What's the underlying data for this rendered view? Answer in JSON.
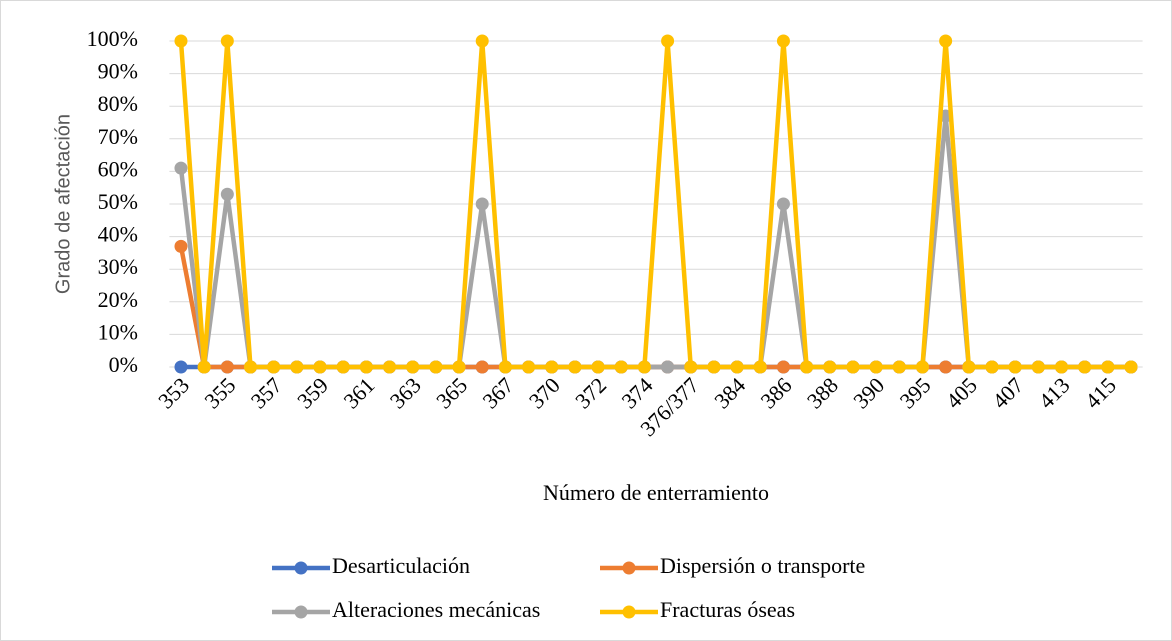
{
  "chart_data": {
    "type": "line",
    "x_label": "Número de enterramiento",
    "y_label": "Grado de afectación",
    "categories": [
      "353",
      null,
      "355",
      null,
      "357",
      null,
      "359",
      null,
      "361",
      null,
      "363",
      null,
      "365",
      null,
      "367",
      null,
      "370",
      null,
      "372",
      null,
      "374",
      null,
      "376/377",
      null,
      "384",
      null,
      "386",
      null,
      "388",
      null,
      "390",
      null,
      "395",
      null,
      "405",
      null,
      "407",
      null,
      "413",
      null,
      "415",
      null
    ],
    "series": [
      {
        "name": "Desarticulación",
        "color": "#4472c4",
        "values": [
          0,
          0,
          0,
          0,
          0,
          0,
          0,
          0,
          0,
          0,
          0,
          0,
          0,
          0,
          0,
          0,
          0,
          0,
          0,
          0,
          0,
          0,
          0,
          0,
          0,
          0,
          0,
          0,
          0,
          0,
          0,
          0,
          0,
          0,
          0,
          0,
          0,
          0,
          0,
          0,
          0,
          0
        ]
      },
      {
        "name": "Dispersión o transporte",
        "color": "#ed7d31",
        "values": [
          37,
          0,
          0,
          0,
          0,
          0,
          0,
          0,
          0,
          0,
          0,
          0,
          0,
          0,
          0,
          0,
          0,
          0,
          0,
          0,
          0,
          0,
          0,
          0,
          0,
          0,
          0,
          0,
          0,
          0,
          0,
          0,
          0,
          0,
          0,
          0,
          0,
          0,
          0,
          0,
          0,
          0
        ]
      },
      {
        "name": "Alteraciones mecánicas",
        "color": "#a5a5a5",
        "values": [
          61,
          0,
          53,
          0,
          0,
          0,
          0,
          0,
          0,
          0,
          0,
          0,
          0,
          50,
          0,
          0,
          0,
          0,
          0,
          0,
          0,
          0,
          0,
          0,
          0,
          0,
          50,
          0,
          0,
          0,
          0,
          0,
          0,
          77,
          0,
          0,
          0,
          0,
          0,
          0,
          0,
          0
        ]
      },
      {
        "name": "Fracturas óseas",
        "color": "#ffc000",
        "values": [
          100,
          0,
          100,
          0,
          0,
          0,
          0,
          0,
          0,
          0,
          0,
          0,
          0,
          100,
          0,
          0,
          0,
          0,
          0,
          0,
          0,
          100,
          0,
          0,
          0,
          0,
          100,
          0,
          0,
          0,
          0,
          0,
          0,
          100,
          0,
          0,
          0,
          0,
          0,
          0,
          0,
          0
        ]
      }
    ],
    "ylim": [
      0,
      100
    ],
    "yticks": [
      {
        "value": 0,
        "label": "0%"
      },
      {
        "value": 10,
        "label": "10%"
      },
      {
        "value": 20,
        "label": "20%"
      },
      {
        "value": 30,
        "label": "30%"
      },
      {
        "value": 40,
        "label": "40%"
      },
      {
        "value": 50,
        "label": "50%"
      },
      {
        "value": 60,
        "label": "60%"
      },
      {
        "value": 70,
        "label": "70%"
      },
      {
        "value": 80,
        "label": "80%"
      },
      {
        "value": 90,
        "label": "90%"
      },
      {
        "value": 100,
        "label": "100%"
      }
    ],
    "grid": true,
    "legend": "bottom"
  }
}
